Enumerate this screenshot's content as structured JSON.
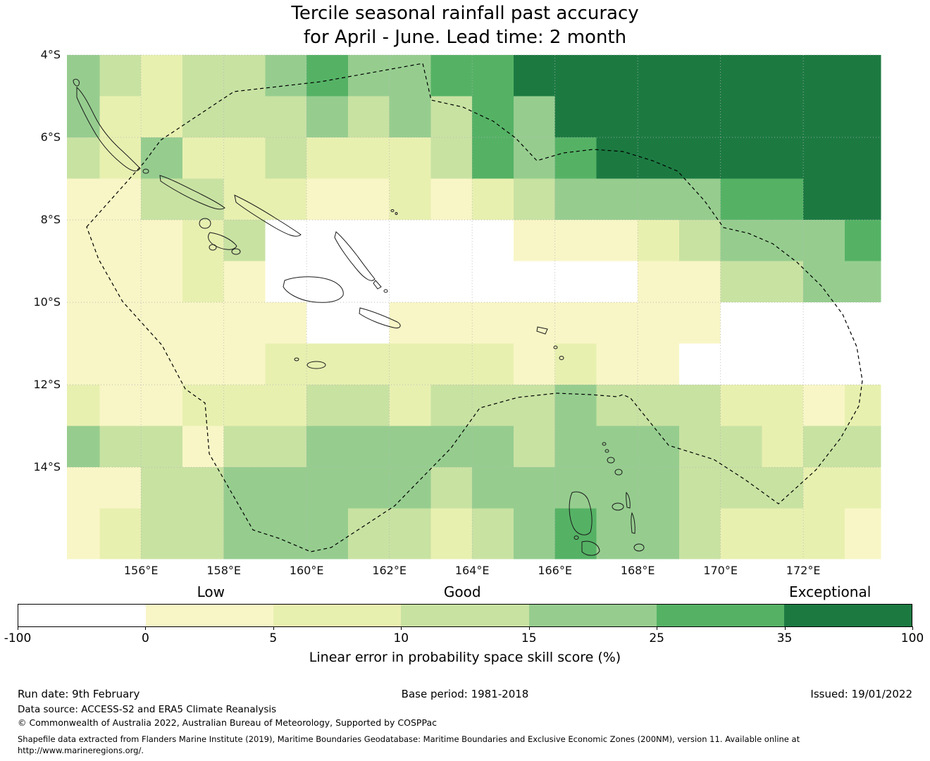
{
  "title": {
    "line1": "Tercile seasonal rainfall past accuracy",
    "line2": "for April - June. Lead time: 2 month"
  },
  "map": {
    "x_ticks": [
      "156°E",
      "158°E",
      "160°E",
      "162°E",
      "164°E",
      "166°E",
      "168°E",
      "170°E",
      "172°E"
    ],
    "y_ticks": [
      "4°S",
      "6°S",
      "8°S",
      "10°S",
      "12°S",
      "14°S"
    ]
  },
  "colorbar": {
    "quality_labels": [
      "Low",
      "Good",
      "Exceptional"
    ],
    "ticks": [
      "-100",
      "0",
      "5",
      "10",
      "15",
      "25",
      "35",
      "100"
    ],
    "colors": [
      "#ffffff",
      "#f8f6c6",
      "#e8f0b0",
      "#c8e2a2",
      "#96cd8f",
      "#55b265",
      "#1c7a41"
    ],
    "axis_label": "Linear error in probability space skill score (%)"
  },
  "footer": {
    "run_date": "Run date: 9th February",
    "base_period": "Base period: 1981-2018",
    "issued": "Issued: 19/01/2022",
    "data_source": "Data source: ACCESS-S2 and ERA5 Climate Reanalysis",
    "copyright": "© Commonwealth of Australia 2022, Australian Bureau of Meteorology, Supported by COSPPac",
    "shapefile_line1": "Shapefile data extracted from Flanders Marine Institute (2019), Maritime Boundaries Geodatabase: Maritime Boundaries and Exclusive Economic Zones (200NM), version 11. Available online at",
    "shapefile_line2": "http://www.marineregions.org/."
  },
  "chart_data": {
    "type": "heatmap",
    "title": "Tercile seasonal rainfall past accuracy for April - June. Lead time: 2 month",
    "metric": "Linear error in probability space skill score (%)",
    "colorbar_tick_values": [
      -100,
      0,
      5,
      10,
      15,
      25,
      35,
      100
    ],
    "categories": [
      "< 0",
      "0–5",
      "5–10",
      "10–15",
      "15–25",
      "25–35",
      "35–100"
    ],
    "quality_bands": {
      "Low": "0–5",
      "Good": "10–15",
      "Exceptional": "35–100"
    },
    "x_tick_values": [
      156,
      158,
      160,
      162,
      164,
      166,
      168,
      170,
      172
    ],
    "y_tick_values": [
      4,
      6,
      8,
      10,
      12,
      14
    ],
    "grid": {
      "lon_min": 154.21,
      "lon_max": 173.87,
      "lat_min": 4,
      "lat_max": 16.22,
      "cell_size_deg": 1,
      "value_encoding": "index into categories / colorbar colors (0=white <0%, 6=dark green 35-100%)",
      "values": [
        [
          4,
          3,
          2,
          3,
          3,
          4,
          5,
          4,
          4,
          5,
          5,
          6,
          6,
          6,
          6,
          6,
          6,
          6,
          6,
          6
        ],
        [
          4,
          2,
          2,
          3,
          3,
          3,
          4,
          3,
          4,
          3,
          5,
          4,
          6,
          6,
          6,
          6,
          6,
          6,
          6,
          6
        ],
        [
          3,
          2,
          4,
          2,
          2,
          3,
          2,
          2,
          2,
          3,
          5,
          4,
          5,
          6,
          6,
          6,
          6,
          6,
          6,
          6
        ],
        [
          1,
          1,
          3,
          3,
          2,
          2,
          1,
          1,
          2,
          1,
          2,
          3,
          4,
          4,
          4,
          4,
          5,
          5,
          6,
          6
        ],
        [
          1,
          1,
          1,
          2,
          3,
          0,
          0,
          0,
          0,
          0,
          0,
          1,
          1,
          1,
          2,
          3,
          4,
          4,
          4,
          5
        ],
        [
          1,
          1,
          1,
          2,
          1,
          0,
          0,
          0,
          0,
          0,
          0,
          0,
          0,
          0,
          1,
          1,
          3,
          3,
          4,
          4
        ],
        [
          1,
          1,
          1,
          1,
          1,
          1,
          0,
          0,
          1,
          1,
          1,
          1,
          1,
          1,
          1,
          1,
          0,
          0,
          0,
          0
        ],
        [
          1,
          1,
          1,
          1,
          1,
          2,
          2,
          2,
          2,
          2,
          2,
          1,
          2,
          1,
          1,
          0,
          0,
          0,
          0,
          0
        ],
        [
          2,
          1,
          1,
          2,
          2,
          2,
          3,
          3,
          2,
          3,
          3,
          3,
          4,
          3,
          3,
          3,
          2,
          2,
          1,
          2
        ],
        [
          4,
          3,
          3,
          1,
          3,
          3,
          4,
          4,
          4,
          4,
          4,
          3,
          4,
          4,
          4,
          3,
          3,
          2,
          3,
          3
        ],
        [
          1,
          1,
          3,
          3,
          4,
          4,
          4,
          4,
          4,
          3,
          4,
          4,
          4,
          4,
          4,
          3,
          3,
          3,
          2,
          2
        ],
        [
          1,
          2,
          3,
          3,
          4,
          4,
          4,
          3,
          3,
          2,
          3,
          4,
          5,
          4,
          4,
          3,
          2,
          2,
          2,
          1
        ],
        [
          1,
          2,
          3,
          3,
          4,
          4,
          4,
          3,
          3,
          2,
          3,
          4,
          5,
          4,
          4,
          3,
          2,
          2,
          2,
          1
        ]
      ]
    }
  }
}
